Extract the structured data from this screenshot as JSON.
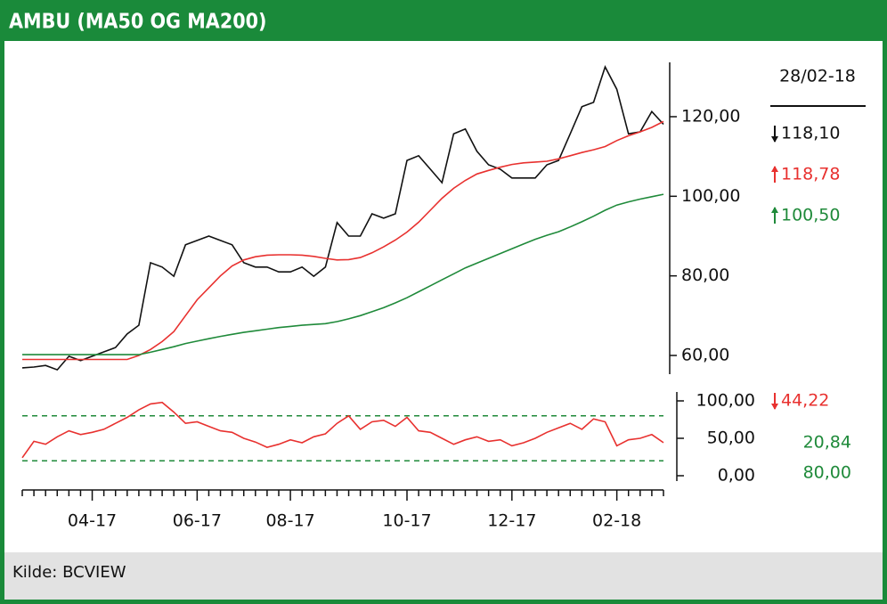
{
  "title": "AMBU (MA50 OG MA200)",
  "source": "Kilde: BCVIEW",
  "chart_data": [
    {
      "type": "line",
      "date_label": "28/02-18",
      "ylim": [
        55.3,
        134.1
      ],
      "yticks": [
        {
          "value": 60,
          "label": "60,00"
        },
        {
          "value": 80,
          "label": "80,00"
        },
        {
          "value": 100,
          "label": "100,00"
        },
        {
          "value": 120,
          "label": "120,00"
        }
      ],
      "series": [
        {
          "color": "#111111",
          "last_label": "118,10",
          "values": [
            56.9,
            57.1,
            57.5,
            56.4,
            59.8,
            58.7,
            59.8,
            60.9,
            62.0,
            65.4,
            67.6,
            83.3,
            82.2,
            79.9,
            87.8,
            88.9,
            90.0,
            88.9,
            87.8,
            83.3,
            82.2,
            82.2,
            81.0,
            81.0,
            82.2,
            79.9,
            82.2,
            93.4,
            90.0,
            90.0,
            95.6,
            94.5,
            95.6,
            109.0,
            110.2,
            106.8,
            103.4,
            115.7,
            116.9,
            111.3,
            107.9,
            106.8,
            104.6,
            104.6,
            104.6,
            107.9,
            109.0,
            115.7,
            122.5,
            123.6,
            132.5,
            126.9,
            115.7,
            116.2,
            121.3,
            118.1
          ]
        },
        {
          "color": "#e8312f",
          "last_label": "118,78",
          "values": [
            59.0,
            59.0,
            59.0,
            59.0,
            59.0,
            59.0,
            59.0,
            59.0,
            59.0,
            59.0,
            60.0,
            61.5,
            63.5,
            66,
            70,
            74,
            77,
            80,
            82.5,
            84,
            84.8,
            85.2,
            85.3,
            85.3,
            85.2,
            84.9,
            84.4,
            84,
            84.1,
            84.6,
            85.8,
            87.3,
            89,
            91,
            93.5,
            96.5,
            99.5,
            102,
            104,
            105.6,
            106.5,
            107.3,
            108,
            108.4,
            108.6,
            108.8,
            109.4,
            110.2,
            111,
            111.7,
            112.5,
            114,
            115.2,
            116.2,
            117.3,
            118.78
          ]
        },
        {
          "color": "#1f8a3a",
          "last_label": "100,50",
          "values": [
            60.2,
            60.2,
            60.2,
            60.2,
            60.2,
            60.2,
            60.2,
            60.2,
            60.2,
            60.2,
            60.2,
            60.8,
            61.5,
            62.2,
            63,
            63.6,
            64.2,
            64.8,
            65.3,
            65.8,
            66.2,
            66.6,
            67,
            67.3,
            67.6,
            67.8,
            68,
            68.5,
            69.2,
            70,
            71,
            72,
            73.2,
            74.5,
            76,
            77.5,
            79,
            80.5,
            82,
            83.2,
            84.4,
            85.6,
            86.8,
            88,
            89.2,
            90.2,
            91.1,
            92.3,
            93.6,
            95,
            96.5,
            97.8,
            98.6,
            99.3,
            99.9,
            100.5
          ]
        }
      ]
    },
    {
      "type": "line",
      "categories": [
        null,
        null,
        null,
        null,
        null,
        null,
        "04-17",
        null,
        null,
        null,
        null,
        null,
        null,
        null,
        null,
        "06-17",
        null,
        null,
        null,
        null,
        null,
        null,
        null,
        "08-17",
        null,
        null,
        null,
        null,
        null,
        null,
        null,
        null,
        null,
        "10-17",
        null,
        null,
        null,
        null,
        null,
        null,
        null,
        null,
        "12-17",
        null,
        null,
        null,
        null,
        null,
        null,
        null,
        null,
        "02-18",
        null,
        null,
        null,
        null
      ],
      "ylim": [
        0,
        100
      ],
      "yticks": [
        {
          "value": 0,
          "label": "0,00"
        },
        {
          "value": 50,
          "label": "50,00"
        },
        {
          "value": 100,
          "label": "100,00"
        }
      ],
      "reference_lines": [
        80,
        20
      ],
      "reference_color": "#1f8a3a",
      "side_labels": [
        "20,84",
        "80,00"
      ],
      "series": [
        {
          "color": "#e8312f",
          "last_label": "44,22",
          "values": [
            24,
            46,
            42,
            52,
            60,
            55,
            58,
            62,
            70,
            78,
            88,
            96,
            98,
            85,
            70,
            72,
            66,
            60,
            58,
            50,
            45,
            38,
            42,
            48,
            44,
            52,
            56,
            70,
            80,
            62,
            72,
            74,
            66,
            78,
            60,
            58,
            50,
            42,
            48,
            52,
            46,
            48,
            40,
            44,
            50,
            58,
            64,
            70,
            62,
            76,
            72,
            40,
            48,
            50,
            55,
            44.22
          ]
        }
      ]
    }
  ]
}
